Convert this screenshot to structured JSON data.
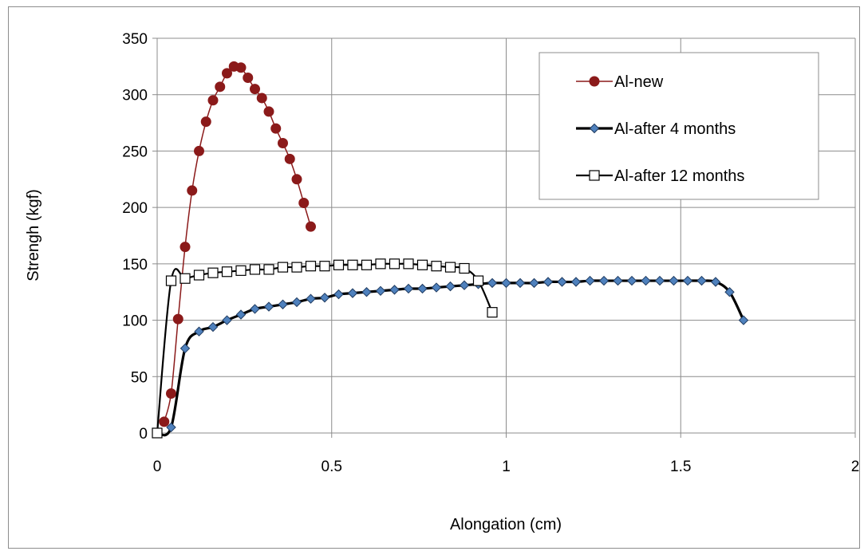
{
  "chart_data": {
    "type": "line",
    "title": "",
    "xlabel": "Alongation (cm)",
    "ylabel": "Strengh (kgf)",
    "xlim": [
      0,
      2
    ],
    "ylim": [
      0,
      350
    ],
    "xticks": [
      "0",
      "0.5",
      "1",
      "1.5",
      "2"
    ],
    "yticks": [
      "0",
      "50",
      "100",
      "150",
      "200",
      "250",
      "300",
      "350"
    ],
    "grid": "vertical and horizontal major gridlines",
    "legend_position": "top-right",
    "series": [
      {
        "name": "Al-new",
        "color": "#8b1a1a",
        "marker": "circle",
        "x": [
          0.02,
          0.04,
          0.06,
          0.08,
          0.1,
          0.12,
          0.14,
          0.16,
          0.18,
          0.2,
          0.22,
          0.24,
          0.26,
          0.28,
          0.3,
          0.32,
          0.34,
          0.36,
          0.38,
          0.4,
          0.42,
          0.44
        ],
        "y": [
          10,
          35,
          101,
          165,
          215,
          250,
          276,
          295,
          307,
          319,
          325,
          324,
          315,
          305,
          297,
          285,
          270,
          257,
          243,
          225,
          204,
          183
        ]
      },
      {
        "name": "Al-after 4 months",
        "color": "#000000",
        "marker_color": "#4f81bd",
        "marker": "diamond",
        "x": [
          0.0,
          0.04,
          0.08,
          0.12,
          0.16,
          0.2,
          0.24,
          0.28,
          0.32,
          0.36,
          0.4,
          0.44,
          0.48,
          0.52,
          0.56,
          0.6,
          0.64,
          0.68,
          0.72,
          0.76,
          0.8,
          0.84,
          0.88,
          0.92,
          0.96,
          1.0,
          1.04,
          1.08,
          1.12,
          1.16,
          1.2,
          1.24,
          1.28,
          1.32,
          1.36,
          1.4,
          1.44,
          1.48,
          1.52,
          1.56,
          1.6,
          1.64,
          1.68
        ],
        "y": [
          0,
          5,
          75,
          90,
          94,
          100,
          105,
          110,
          112,
          114,
          116,
          119,
          120,
          123,
          124,
          125,
          126,
          127,
          128,
          128,
          129,
          130,
          131,
          132,
          133,
          133,
          133,
          133,
          134,
          134,
          134,
          135,
          135,
          135,
          135,
          135,
          135,
          135,
          135,
          135,
          134,
          125,
          100
        ]
      },
      {
        "name": "Al-after 12 months",
        "color": "#000000",
        "marker": "square-open",
        "x": [
          0.0,
          0.04,
          0.08,
          0.12,
          0.16,
          0.2,
          0.24,
          0.28,
          0.32,
          0.36,
          0.4,
          0.44,
          0.48,
          0.52,
          0.56,
          0.6,
          0.64,
          0.68,
          0.72,
          0.76,
          0.8,
          0.84,
          0.88,
          0.92,
          0.96
        ],
        "y": [
          0,
          135,
          137,
          140,
          142,
          143,
          144,
          145,
          145,
          147,
          147,
          148,
          148,
          149,
          149,
          149,
          150,
          150,
          150,
          149,
          148,
          147,
          146,
          135,
          107
        ]
      }
    ]
  }
}
